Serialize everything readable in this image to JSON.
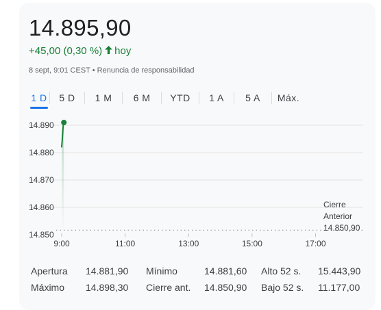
{
  "quote": {
    "price": "14.895,90",
    "change": "+45,00 (0,30 %)",
    "period": "hoy",
    "timestamp": "8 sept, 9:01 CEST",
    "separator": "•",
    "disclaimer": "Renuncia de responsabilidad",
    "color_positive": "#188038"
  },
  "tabs": [
    {
      "label": "1 D",
      "active": true
    },
    {
      "label": "5 D",
      "active": false
    },
    {
      "label": "1 M",
      "active": false
    },
    {
      "label": "6 M",
      "active": false
    },
    {
      "label": "YTD",
      "active": false
    },
    {
      "label": "1 A",
      "active": false
    },
    {
      "label": "5 A",
      "active": false
    },
    {
      "label": "Máx.",
      "active": false
    }
  ],
  "chart_data": {
    "type": "line",
    "y_ticks": [
      "14.890",
      "14.880",
      "14.870",
      "14.860",
      "14.850"
    ],
    "ylim": [
      14850,
      14890
    ],
    "x_ticks": [
      "9:00",
      "11:00",
      "13:00",
      "15:00",
      "17:00"
    ],
    "x_tick_hours": [
      9,
      11,
      13,
      15,
      17
    ],
    "xlim_hours": [
      8.9,
      18.4
    ],
    "series": [
      {
        "color": "#188038",
        "points": [
          [
            9.0,
            14881.9
          ],
          [
            9.01,
            14884.5
          ],
          [
            9.02,
            14887.8
          ],
          [
            9.03,
            14890.4
          ],
          [
            9.04,
            14891.0
          ]
        ]
      }
    ],
    "previous_close": {
      "label_line1": "Cierre",
      "label_line2": "Anterior",
      "value_label": "14.850,90",
      "value": 14850.9
    },
    "grid": true
  },
  "stats": [
    {
      "label": "Apertura",
      "value": "14.881,90"
    },
    {
      "label": "Mínimo",
      "value": "14.881,60"
    },
    {
      "label": "Alto 52 s.",
      "value": "15.443,90"
    },
    {
      "label": "Máximo",
      "value": "14.898,30"
    },
    {
      "label": "Cierre ant.",
      "value": "14.850,90"
    },
    {
      "label": "Bajo 52 s.",
      "value": "11.177,00"
    }
  ]
}
